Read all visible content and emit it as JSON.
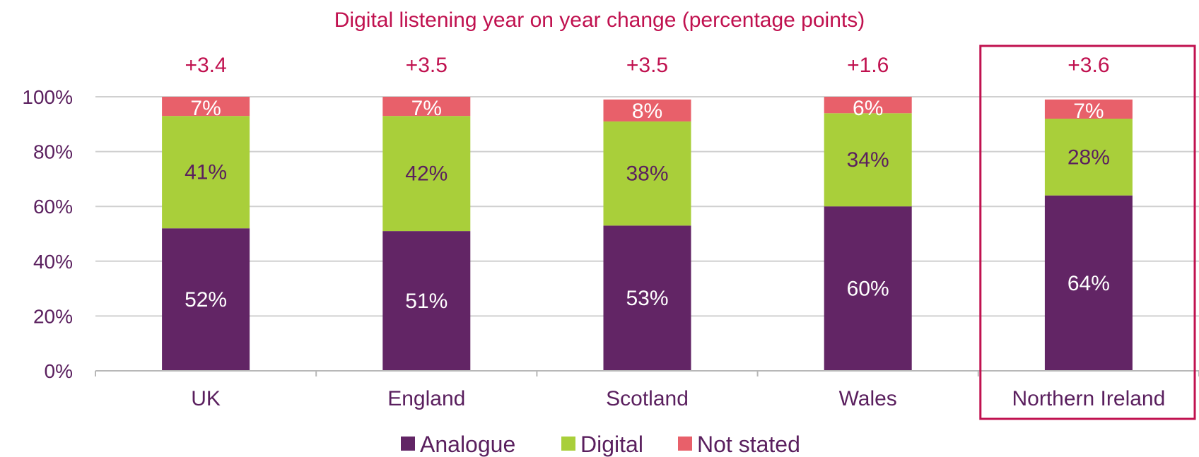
{
  "chart_data": {
    "type": "bar",
    "stacked": true,
    "title": "Digital listening year on year change (percentage points)",
    "categories": [
      "UK",
      "England",
      "Scotland",
      "Wales",
      "Northern Ireland"
    ],
    "change_labels": [
      "+3.4",
      "+3.5",
      "+3.5",
      "+1.6",
      "+3.6"
    ],
    "highlighted_category": "Northern Ireland",
    "series": [
      {
        "name": "Analogue",
        "color": "#622565",
        "values": [
          52,
          51,
          53,
          60,
          64
        ],
        "labels": [
          "52%",
          "51%",
          "53%",
          "60%",
          "64%"
        ]
      },
      {
        "name": "Digital",
        "color": "#a9cf3a",
        "values": [
          41,
          42,
          38,
          34,
          28
        ],
        "labels": [
          "41%",
          "42%",
          "38%",
          "34%",
          "28%"
        ]
      },
      {
        "name": "Not stated",
        "color": "#e8606a",
        "values": [
          7,
          7,
          8,
          6,
          7
        ],
        "labels": [
          "7%",
          "7%",
          "8%",
          "6%",
          "7%"
        ]
      }
    ],
    "ylim": [
      0,
      100
    ],
    "yticks": [
      0,
      20,
      40,
      60,
      80,
      100
    ],
    "ytick_labels": [
      "0%",
      "20%",
      "40%",
      "60%",
      "80%",
      "100%"
    ],
    "grid": true,
    "legend_position": "bottom",
    "colors": {
      "title": "#c0114f",
      "change_label": "#c0114f",
      "highlight_box": "#c0114f",
      "axis_text": "#5a1f5e",
      "gridline": "#d0d0d0",
      "label_on_analogue": "#ffffff",
      "label_on_digital": "#5a1f5e",
      "label_on_not_stated": "#ffffff"
    }
  }
}
